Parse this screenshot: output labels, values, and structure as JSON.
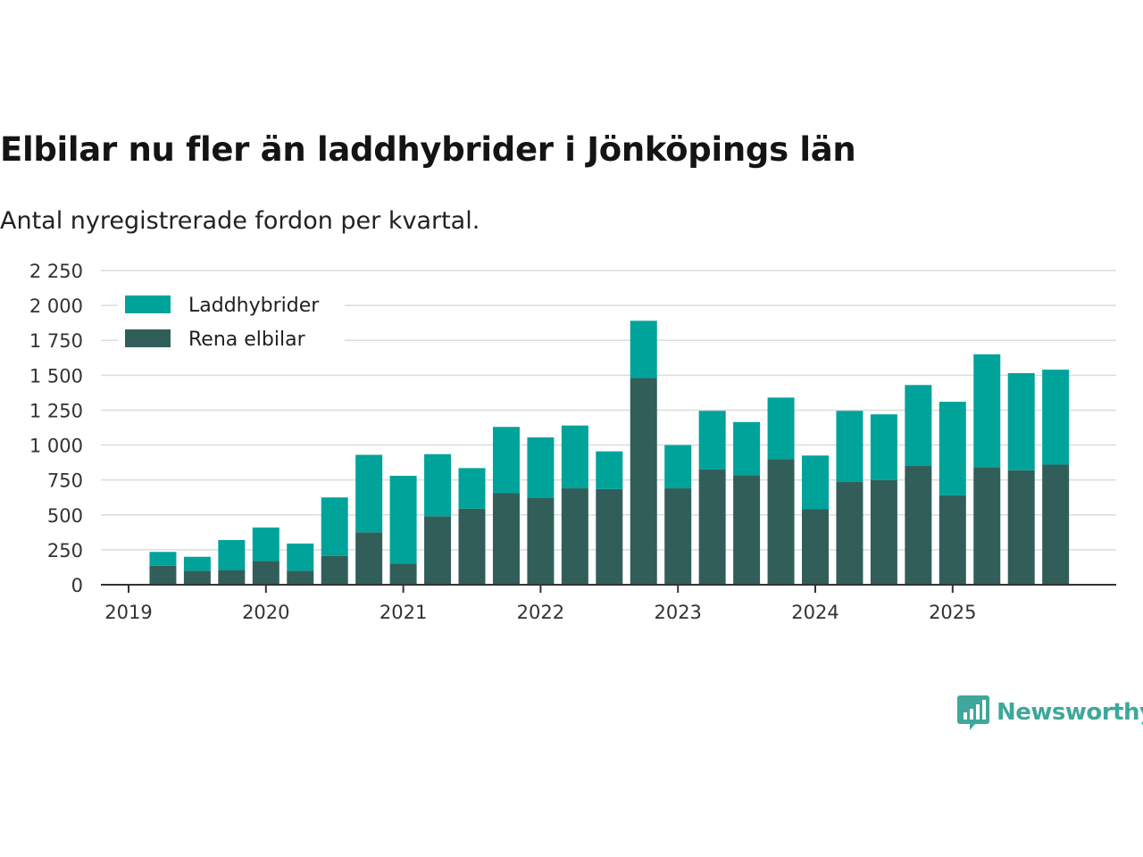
{
  "chart_data": {
    "type": "bar",
    "stacked": true,
    "title": "Elbilar nu fler än laddhybrider i Jönköpings län",
    "subtitle": "Antal nyregistrerade fordon per kvartal.",
    "xlabel": "",
    "ylabel": "",
    "ylim": [
      0,
      2250
    ],
    "yticks": [
      0,
      250,
      500,
      750,
      1000,
      1250,
      1500,
      1750,
      2000,
      2250
    ],
    "ytick_labels": [
      "0",
      "250",
      "500",
      "750",
      "1 000",
      "1 250",
      "1 500",
      "1 750",
      "2 000",
      "2 250"
    ],
    "xticks": [
      2019,
      2020,
      2021,
      2022,
      2023,
      2024,
      2025
    ],
    "xtick_labels": [
      "2019",
      "2020",
      "2021",
      "2022",
      "2023",
      "2024",
      "2025"
    ],
    "grid": true,
    "legend_position": "top-left",
    "categories": [
      "2019 Q2",
      "2019 Q3",
      "2019 Q4",
      "2020 Q1",
      "2020 Q2",
      "2020 Q3",
      "2020 Q4",
      "2021 Q1",
      "2021 Q2",
      "2021 Q3",
      "2021 Q4",
      "2022 Q1",
      "2022 Q2",
      "2022 Q3",
      "2022 Q4",
      "2023 Q1",
      "2023 Q2",
      "2023 Q3",
      "2023 Q4",
      "2024 Q1",
      "2024 Q2",
      "2024 Q3",
      "2024 Q4",
      "2025 Q1",
      "2025 Q2",
      "2025 Q3",
      "2025 Q4"
    ],
    "series": [
      {
        "name": "Rena elbilar",
        "color": "#325e5a",
        "values": [
          135,
          100,
          105,
          170,
          100,
          205,
          375,
          150,
          490,
          545,
          655,
          620,
          690,
          685,
          1480,
          690,
          825,
          785,
          900,
          540,
          735,
          750,
          850,
          640,
          840,
          820,
          860
        ]
      },
      {
        "name": "Laddhybrider",
        "color": "#00a39a",
        "values": [
          100,
          100,
          215,
          240,
          195,
          420,
          555,
          630,
          445,
          290,
          475,
          435,
          450,
          270,
          410,
          310,
          420,
          380,
          440,
          385,
          510,
          470,
          580,
          670,
          810,
          695,
          680
        ]
      }
    ]
  },
  "brand": {
    "name": "Newsworthy",
    "color": "#3fa79b",
    "icon": "bar-chart-speech-bubble-icon"
  }
}
